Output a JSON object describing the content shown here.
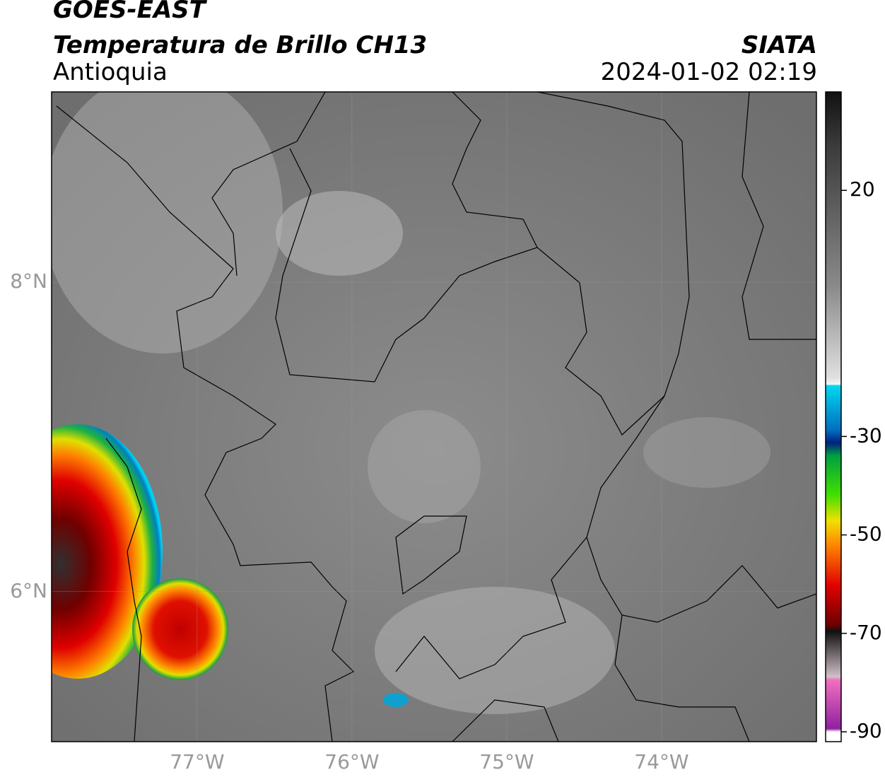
{
  "chart_data": {
    "type": "map",
    "title": "GOES-EAST",
    "subtitle": "Temperatura de Brillo CH13",
    "region": "Antioquia",
    "source": "SIATA",
    "timestamp": "2024-01-02 02:19",
    "xlim": [
      -77.94,
      -73.0
    ],
    "ylim": [
      5.03,
      9.23
    ],
    "xticks": [
      {
        "value": -77,
        "label": "77°W"
      },
      {
        "value": -76,
        "label": "76°W"
      },
      {
        "value": -75,
        "label": "75°W"
      },
      {
        "value": -74,
        "label": "74°W"
      }
    ],
    "yticks": [
      {
        "value": 8,
        "label": "8°N"
      },
      {
        "value": 6,
        "label": "6°N"
      }
    ],
    "grid": true,
    "colorbar": {
      "clim": [
        -92,
        40
      ],
      "ticks": [
        20,
        -30,
        -50,
        -70,
        -90
      ]
    }
  }
}
